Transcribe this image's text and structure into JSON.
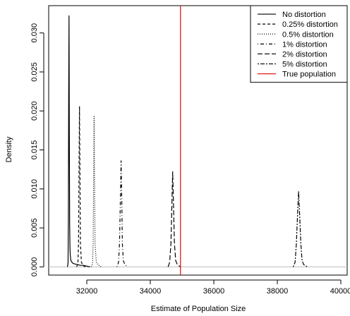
{
  "chart_data": {
    "type": "line",
    "title": "",
    "xlabel": "Estimate of Population Size",
    "ylabel": "Density",
    "xlim": [
      30800,
      40200
    ],
    "ylim": [
      -0.00105,
      0.0335
    ],
    "x_ticks": [
      32000,
      34000,
      36000,
      38000,
      40000
    ],
    "x_tick_labels": [
      "32000",
      "34000",
      "36000",
      "38000",
      "40000"
    ],
    "y_ticks": [
      0,
      0.005,
      0.01,
      0.015,
      0.02,
      0.025,
      0.03
    ],
    "y_tick_labels": [
      "0.000",
      "0.005",
      "0.010",
      "0.015",
      "0.020",
      "0.025",
      "0.030"
    ],
    "grid": false,
    "baseline_color": "#bdbdbd",
    "legend_position": "top-right",
    "series": [
      {
        "name": "No distortion",
        "style": "solid",
        "color": "#000000",
        "x": [
          31390,
          31410,
          31420,
          31430,
          31440,
          31450,
          31460,
          31470,
          31480,
          31500,
          31550,
          31600,
          31700,
          31800,
          31900,
          32000,
          32100
        ],
        "y": [
          0,
          0.0005,
          0.006,
          0.022,
          0.0322,
          0.017,
          0.0055,
          0.0025,
          0.0015,
          0.0008,
          0.0005,
          0.0004,
          0.0003,
          0.0002,
          0.0002,
          0.0001,
          0
        ]
      },
      {
        "name": "0.25% distortion",
        "style": "dashed",
        "color": "#000000",
        "x": [
          31680,
          31720,
          31740,
          31755,
          31770,
          31785,
          31800,
          31830,
          31880,
          31950
        ],
        "y": [
          0,
          0.0004,
          0.003,
          0.012,
          0.0206,
          0.012,
          0.003,
          0.0006,
          0.0002,
          0
        ],
        "label": ""
      },
      {
        "name": "0.5% distortion",
        "style": "dotted",
        "color": "#000000",
        "x": [
          32140,
          32180,
          32200,
          32215,
          32230,
          32245,
          32260,
          32300,
          32350,
          32450
        ],
        "y": [
          0,
          0.0004,
          0.003,
          0.011,
          0.0193,
          0.011,
          0.003,
          0.0006,
          0.0003,
          0
        ]
      },
      {
        "name": "1% distortion",
        "style": "dotdash",
        "color": "#000000",
        "x": [
          32950,
          33000,
          33030,
          33060,
          33080,
          33100,
          33120,
          33150,
          33200,
          33300
        ],
        "y": [
          0,
          0.0006,
          0.003,
          0.009,
          0.0136,
          0.009,
          0.003,
          0.0008,
          0.0003,
          0
        ]
      },
      {
        "name": "2% distortion",
        "style": "longdash",
        "color": "#000000",
        "x": [
          34560,
          34610,
          34650,
          34680,
          34705,
          34730,
          34760,
          34800,
          34850,
          34950
        ],
        "y": [
          0,
          0.0006,
          0.003,
          0.008,
          0.0122,
          0.008,
          0.003,
          0.0008,
          0.0003,
          0
        ]
      },
      {
        "name": "5% distortion",
        "style": "twodash",
        "color": "#000000",
        "x": [
          38500,
          38560,
          38600,
          38640,
          38670,
          38700,
          38740,
          38780,
          38830,
          38950
        ],
        "y": [
          0,
          0.0006,
          0.003,
          0.007,
          0.0097,
          0.007,
          0.003,
          0.0008,
          0.0003,
          0
        ]
      },
      {
        "name": "True population",
        "style": "solid",
        "color": "#e41a1c",
        "vline_x": 34950
      }
    ]
  }
}
